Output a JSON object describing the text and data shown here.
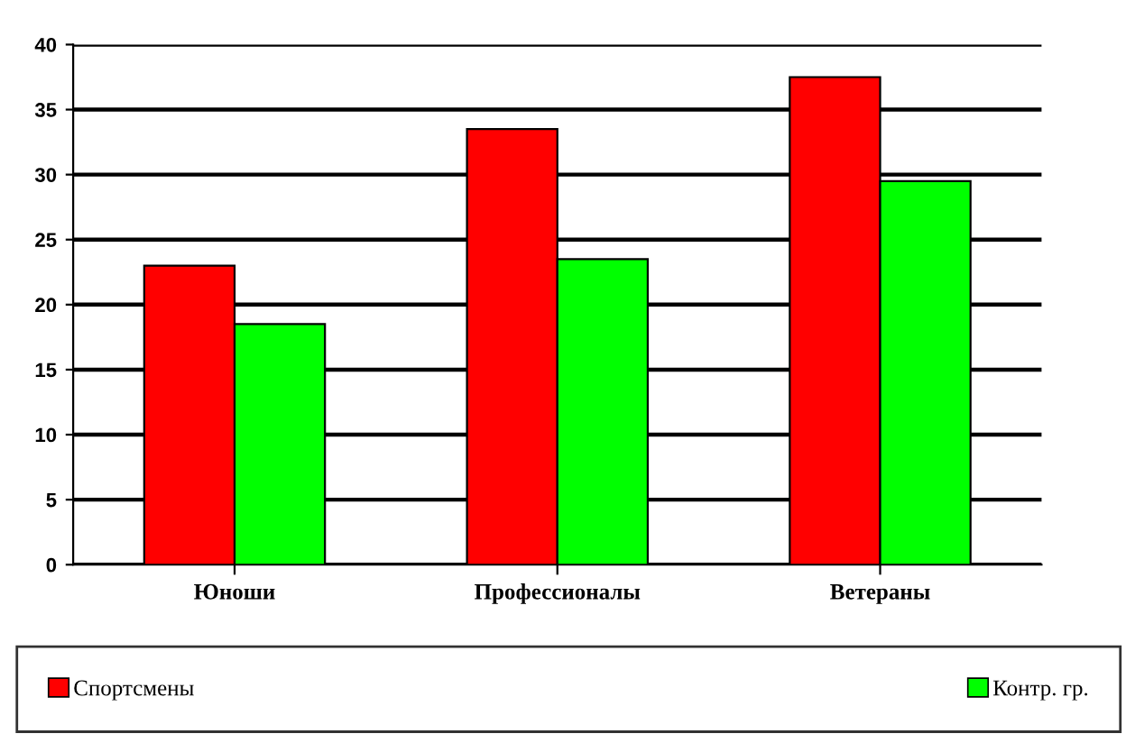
{
  "chart_data": {
    "type": "bar",
    "categories": [
      "Юноши",
      "Профессионалы",
      "Ветераны"
    ],
    "series": [
      {
        "name": "Спортсмены",
        "color": "#ff0000",
        "values": [
          23,
          33.5,
          37.5
        ]
      },
      {
        "name": "Контр. гр.",
        "color": "#00ff00",
        "values": [
          18.5,
          23.5,
          29.5
        ]
      }
    ],
    "ylim": [
      0,
      40
    ],
    "yticks": [
      0,
      5,
      10,
      15,
      20,
      25,
      30,
      35,
      40
    ],
    "grid": "y",
    "legend": "bottom"
  }
}
